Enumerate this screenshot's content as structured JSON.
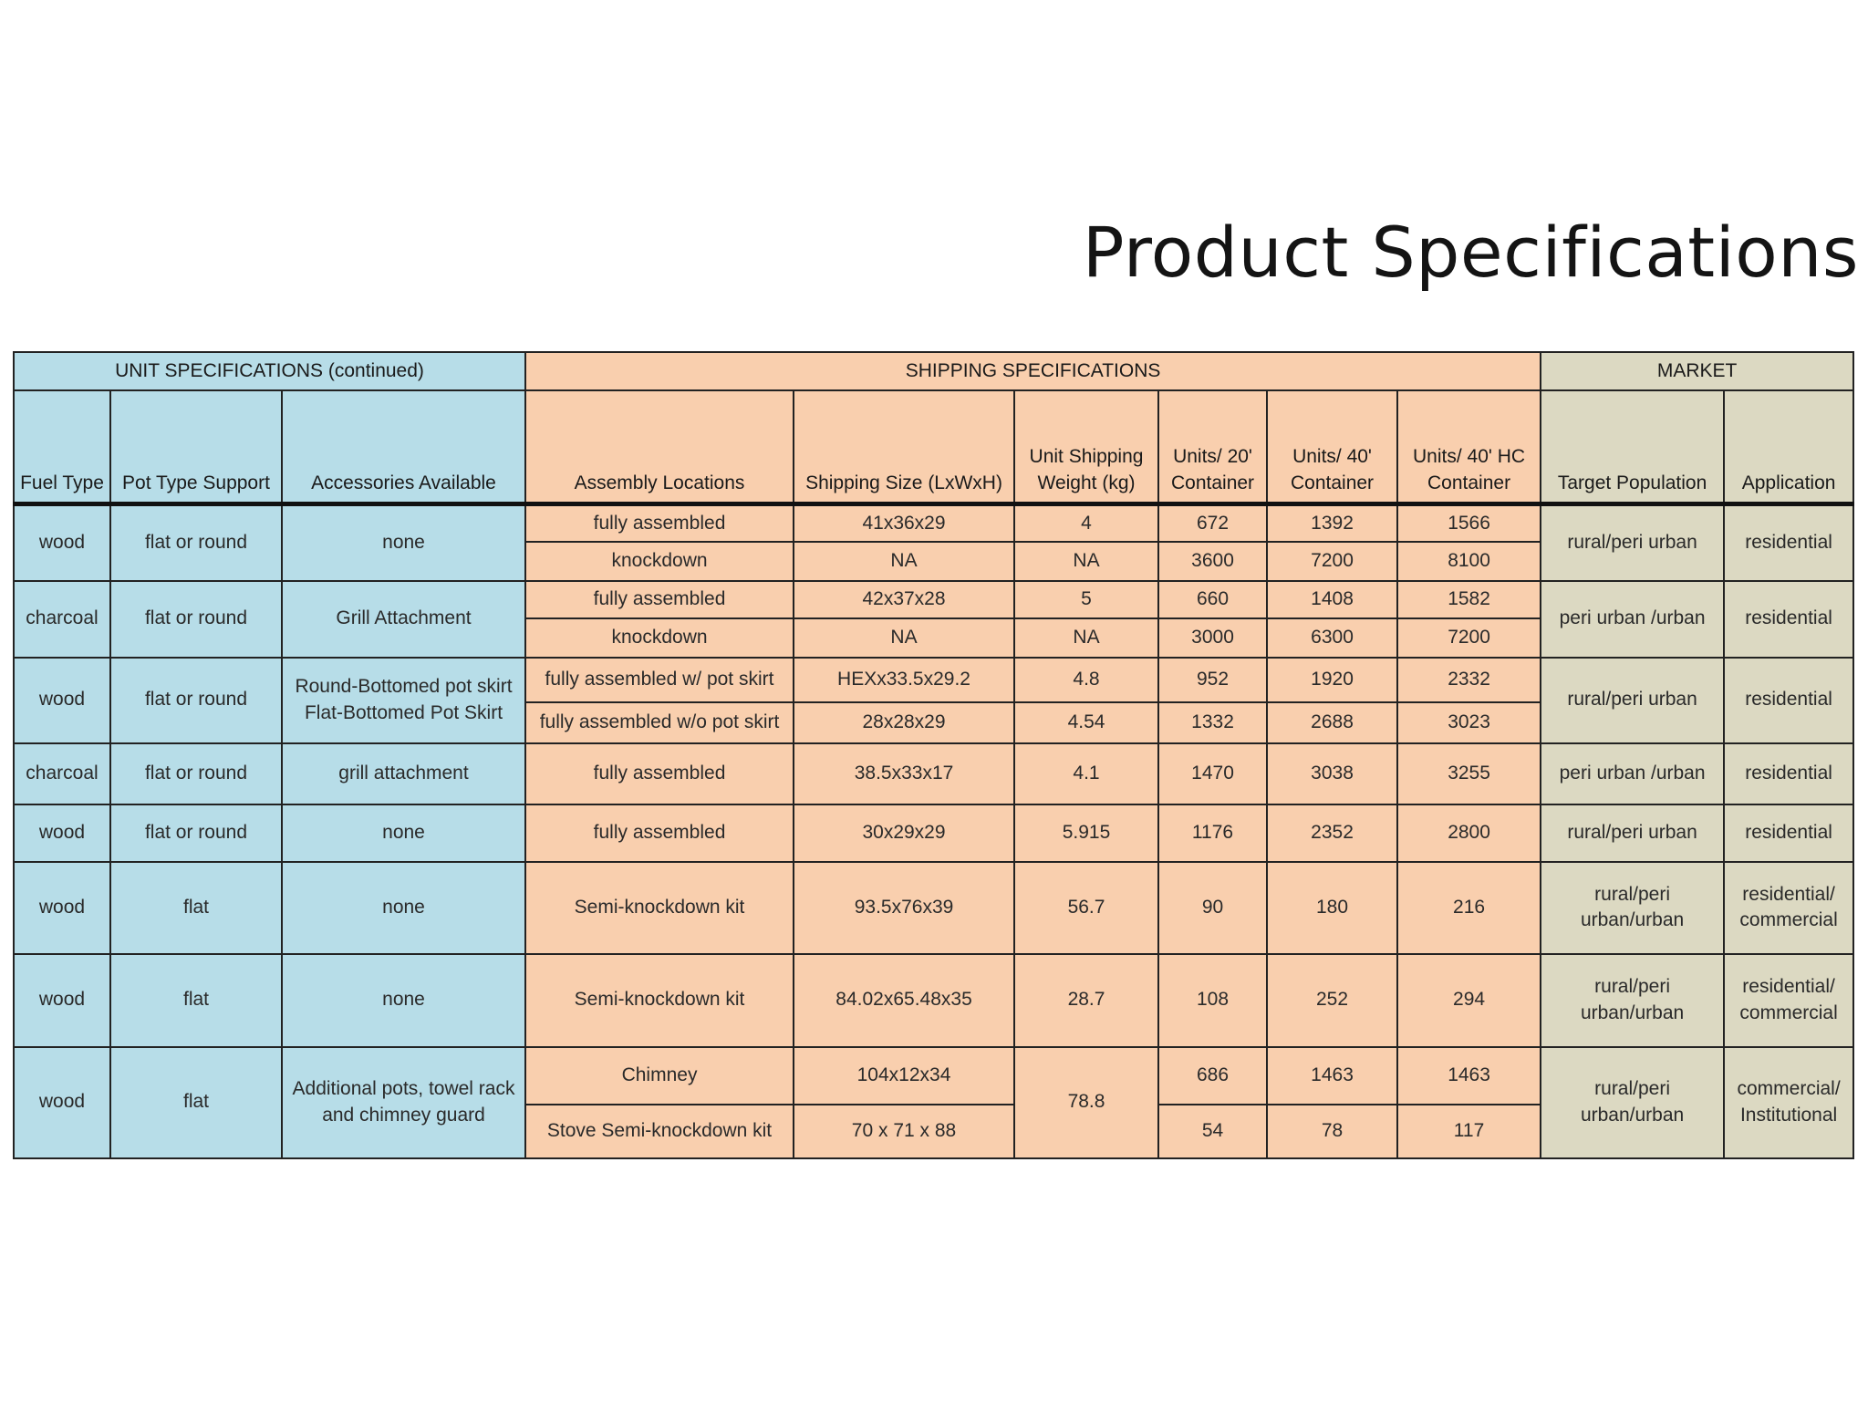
{
  "title": "Product Specifications",
  "colors": {
    "unit_bg": "#b7dde8",
    "shipping_bg": "#f9cfae",
    "market_bg": "#dcd9c2"
  },
  "table": {
    "groups": {
      "unit": "UNIT SPECIFICATIONS (continued)",
      "shipping": "SHIPPING SPECIFICATIONS",
      "market": "MARKET"
    },
    "headers": {
      "fuel": "Fuel Type",
      "pot": "Pot Type Support",
      "acc": "Accessories Available",
      "assembly": "Assembly Locations",
      "size": "Shipping Size (LxWxH)",
      "weight": "Unit Shipping\nWeight (kg)",
      "u20": "Units/ 20'\nContainer",
      "u40": "Units/ 40'\nContainer",
      "u40hc": "Units/ 40' HC\nContainer",
      "target": "Target Population",
      "app": "Application"
    },
    "rows": [
      {
        "fuel": "wood",
        "pot": "flat or round",
        "acc": "none",
        "target": "rural/peri urban",
        "app": "residential",
        "sub": [
          {
            "assembly": "fully assembled",
            "size": "41x36x29",
            "weight": "4",
            "u20": "672",
            "u40": "1392",
            "u40hc": "1566"
          },
          {
            "assembly": "knockdown",
            "size": "NA",
            "weight": "NA",
            "u20": "3600",
            "u40": "7200",
            "u40hc": "8100"
          }
        ]
      },
      {
        "fuel": "charcoal",
        "pot": "flat or round",
        "acc": "Grill Attachment",
        "target": "peri urban /urban",
        "app": "residential",
        "sub": [
          {
            "assembly": "fully assembled",
            "size": "42x37x28",
            "weight": "5",
            "u20": "660",
            "u40": "1408",
            "u40hc": "1582"
          },
          {
            "assembly": "knockdown",
            "size": "NA",
            "weight": "NA",
            "u20": "3000",
            "u40": "6300",
            "u40hc": "7200"
          }
        ]
      },
      {
        "fuel": "wood",
        "pot": "flat or round",
        "acc": "Round-Bottomed pot skirt\nFlat-Bottomed Pot Skirt",
        "target": "rural/peri urban",
        "app": "residential",
        "sub": [
          {
            "assembly": "fully assembled w/ pot skirt",
            "size": "HEXx33.5x29.2",
            "weight": "4.8",
            "u20": "952",
            "u40": "1920",
            "u40hc": "2332"
          },
          {
            "assembly": "fully assembled w/o pot skirt",
            "size": "28x28x29",
            "weight": "4.54",
            "u20": "1332",
            "u40": "2688",
            "u40hc": "3023"
          }
        ]
      },
      {
        "fuel": "charcoal",
        "pot": "flat or round",
        "acc": "grill attachment",
        "assembly": "fully assembled",
        "size": "38.5x33x17",
        "weight": "4.1",
        "u20": "1470",
        "u40": "3038",
        "u40hc": "3255",
        "target": "peri urban /urban",
        "app": "residential"
      },
      {
        "fuel": "wood",
        "pot": "flat or round",
        "acc": "none",
        "assembly": "fully assembled",
        "size": "30x29x29",
        "weight": "5.915",
        "u20": "1176",
        "u40": "2352",
        "u40hc": "2800",
        "target": "rural/peri urban",
        "app": "residential"
      },
      {
        "fuel": "wood",
        "pot": "flat",
        "acc": "none",
        "assembly": "Semi-knockdown kit",
        "size": "93.5x76x39",
        "weight": "56.7",
        "u20": "90",
        "u40": "180",
        "u40hc": "216",
        "target": "rural/peri\nurban/urban",
        "app": "residential/\ncommercial"
      },
      {
        "fuel": "wood",
        "pot": "flat",
        "acc": "none",
        "assembly": "Semi-knockdown kit",
        "size": "84.02x65.48x35",
        "weight": "28.7",
        "u20": "108",
        "u40": "252",
        "u40hc": "294",
        "target": "rural/peri\nurban/urban",
        "app": "residential/\ncommercial"
      },
      {
        "fuel": "wood",
        "pot": "flat",
        "acc": "Additional pots,  towel rack\nand chimney guard",
        "weight": "78.8",
        "target": "rural/peri\nurban/urban",
        "app": "commercial/\nInstitutional",
        "sub": [
          {
            "assembly": "Chimney",
            "size": "104x12x34",
            "u20": "686",
            "u40": "1463",
            "u40hc": "1463"
          },
          {
            "assembly": "Stove Semi-knockdown kit",
            "size": "70 x 71 x 88",
            "u20": "54",
            "u40": "78",
            "u40hc": "117"
          }
        ]
      }
    ]
  }
}
